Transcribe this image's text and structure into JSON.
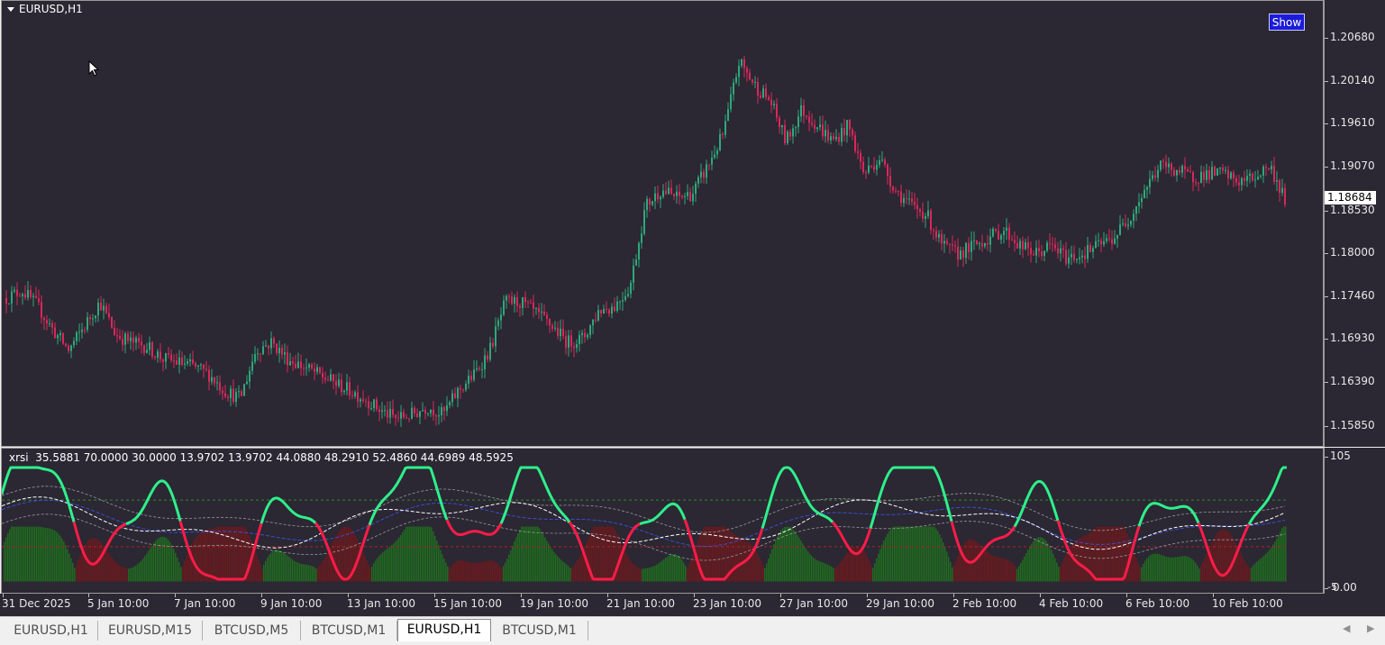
{
  "window": {
    "symbol_title": "EURUSD,H1",
    "show_button": "Show"
  },
  "price_axis": {
    "labels": [
      "1.20680",
      "1.20140",
      "1.19610",
      "1.19070",
      "1.18530",
      "1.18000",
      "1.17460",
      "1.16930",
      "1.16390",
      "1.15850"
    ],
    "current_price": "1.18684"
  },
  "indicator": {
    "name": "xrsi",
    "values": "35.5881 70.0000 30.0000 13.9702 13.9702 44.0880 48.2910 52.4860 44.6989 48.5925",
    "axis_top": "105",
    "axis_bottom": "-5",
    "axis_bottom_label": "0.00"
  },
  "time_axis": {
    "labels": [
      "31 Dec 2025",
      "5 Jan 10:00",
      "7 Jan 10:00",
      "9 Jan 10:00",
      "13 Jan 10:00",
      "15 Jan 10:00",
      "19 Jan 10:00",
      "21 Jan 10:00",
      "23 Jan 10:00",
      "27 Jan 10:00",
      "29 Jan 10:00",
      "2 Feb 10:00",
      "4 Feb 10:00",
      "6 Feb 10:00",
      "10 Feb 10:00"
    ]
  },
  "tabs": [
    {
      "label": "EURUSD,H1",
      "active": false
    },
    {
      "label": "EURUSD,M15",
      "active": false
    },
    {
      "label": "BTCUSD,M5",
      "active": false
    },
    {
      "label": "BTCUSD,M1",
      "active": false
    },
    {
      "label": "EURUSD,H1",
      "active": true
    },
    {
      "label": "BTCUSD,M1",
      "active": false
    }
  ],
  "colors": {
    "background": "#2b2733",
    "bull_candle": "#2ea87a",
    "bear_candle": "#d9285a",
    "rsi_up": "#2ef08a",
    "rsi_down": "#ff1c48",
    "hist_up": "#1f6b1f",
    "hist_down": "#6b1a1e"
  },
  "chart_data": {
    "type": "candlestick",
    "price_path": [
      1.1745,
      1.1755,
      1.1735,
      1.1705,
      1.168,
      1.171,
      1.174,
      1.17,
      1.169,
      1.1685,
      1.167,
      1.1665,
      1.166,
      1.165,
      1.163,
      1.162,
      1.168,
      1.169,
      1.167,
      1.166,
      1.165,
      1.164,
      1.163,
      1.162,
      1.1605,
      1.1595,
      1.16,
      1.161,
      1.16,
      1.163,
      1.165,
      1.168,
      1.174,
      1.174,
      1.1725,
      1.171,
      1.169,
      1.1695,
      1.173,
      1.1735,
      1.176,
      1.186,
      1.188,
      1.187,
      1.1875,
      1.191,
      1.195,
      1.204,
      1.201,
      1.199,
      1.194,
      1.198,
      1.196,
      1.194,
      1.196,
      1.19,
      1.192,
      1.188,
      1.186,
      1.185,
      1.181,
      1.18,
      1.181,
      1.182,
      1.183,
      1.181,
      1.18,
      1.181,
      1.1795,
      1.18,
      1.181,
      1.182,
      1.1845,
      1.188,
      1.191,
      1.1905,
      1.1895,
      1.19,
      1.19,
      1.189,
      1.1895,
      1.191,
      1.1868
    ],
    "ylim": [
      1.1561,
      1.2115
    ],
    "rsi_ylim": [
      -5,
      105
    ]
  }
}
